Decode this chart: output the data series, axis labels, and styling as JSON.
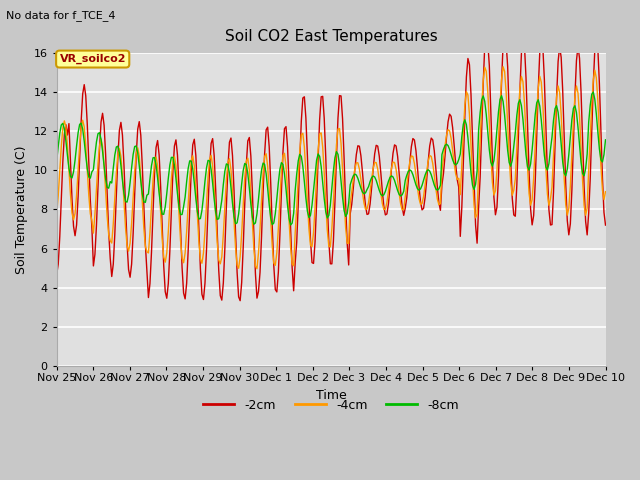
{
  "title": "Soil CO2 East Temperatures",
  "subtitle": "No data for f_TCE_4",
  "xlabel": "Time",
  "ylabel": "Soil Temperature (C)",
  "ylim": [
    0,
    16
  ],
  "tick_labels": [
    "Nov 25",
    "Nov 26",
    "Nov 27",
    "Nov 28",
    "Nov 29",
    "Nov 30",
    "Dec 1",
    "Dec 2",
    "Dec 3",
    "Dec 4",
    "Dec 5",
    "Dec 6",
    "Dec 7",
    "Dec 8",
    "Dec 9",
    "Dec 10"
  ],
  "legend_label": "VR_soilco2",
  "fig_bg_color": "#c8c8c8",
  "plot_bg_color": "#e0e0e0",
  "colors": {
    "2cm": "#cc0000",
    "4cm": "#ff9900",
    "8cm": "#00bb00"
  }
}
